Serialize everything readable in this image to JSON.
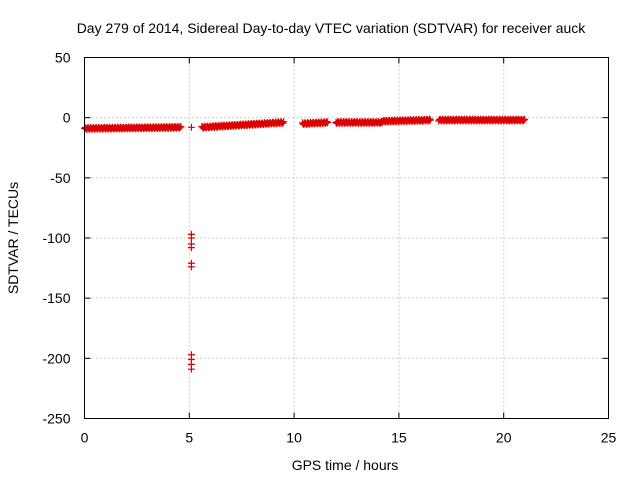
{
  "chart_data": {
    "type": "scatter",
    "title": "Day 279 of 2014, Sidereal Day-to-day VTEC variation (SDTVAR) for receiver auck",
    "xlabel": "GPS time / hours",
    "ylabel": "SDTVAR / TECUs",
    "xlim": [
      0,
      25
    ],
    "ylim": [
      -250,
      50
    ],
    "xticks": [
      0,
      5,
      10,
      15,
      20,
      25
    ],
    "yticks": [
      -250,
      -200,
      -150,
      -100,
      -50,
      0,
      50
    ],
    "grid": true,
    "marker": "+",
    "color": "#dd0000",
    "series": [
      {
        "segments": [
          {
            "x_start": 0.0,
            "x_end": 4.6,
            "y_start": -9,
            "y_end": -8
          },
          {
            "x_start": 5.6,
            "x_end": 9.5,
            "y_start": -8,
            "y_end": -4
          },
          {
            "x_start": 10.4,
            "x_end": 11.6,
            "y_start": -5,
            "y_end": -4
          },
          {
            "x_start": 12.0,
            "x_end": 14.2,
            "y_start": -4,
            "y_end": -4
          },
          {
            "x_start": 14.2,
            "x_end": 16.5,
            "y_start": -3,
            "y_end": -2
          },
          {
            "x_start": 16.9,
            "x_end": 21.0,
            "y_start": -2,
            "y_end": -2
          }
        ],
        "points": [
          {
            "x": 5.1,
            "y": -8
          },
          {
            "x": 5.1,
            "y": -97
          },
          {
            "x": 5.1,
            "y": -100
          },
          {
            "x": 5.1,
            "y": -105
          },
          {
            "x": 5.1,
            "y": -108
          },
          {
            "x": 5.1,
            "y": -121
          },
          {
            "x": 5.1,
            "y": -124
          },
          {
            "x": 5.1,
            "y": -197
          },
          {
            "x": 5.1,
            "y": -201
          },
          {
            "x": 5.1,
            "y": -205
          },
          {
            "x": 5.1,
            "y": -209
          }
        ]
      }
    ]
  }
}
